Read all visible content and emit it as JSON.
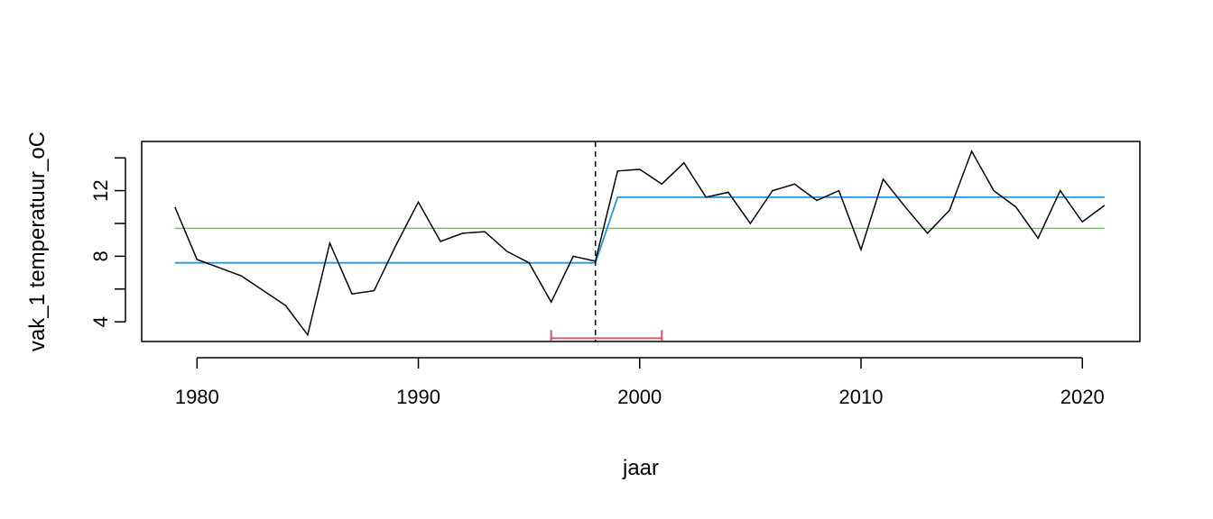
{
  "chart_data": {
    "type": "line",
    "title": "",
    "xlabel": "jaar",
    "ylabel": "vak_1 temperatuur_oC",
    "xlim": [
      1977.5,
      2022.6
    ],
    "ylim": [
      2.8,
      15.0
    ],
    "x_ticks": [
      1980,
      1990,
      2000,
      2010,
      2020
    ],
    "y_ticks": [
      4,
      6,
      8,
      10,
      12,
      14
    ],
    "y_tick_labels": [
      "4",
      "",
      "8",
      "",
      "12",
      ""
    ],
    "grid": false,
    "legend": "none",
    "series": [
      {
        "kind": "observed",
        "color": "#000000",
        "x": [
          1979,
          1980,
          1981,
          1982,
          1983,
          1984,
          1985,
          1986,
          1987,
          1988,
          1989,
          1990,
          1991,
          1992,
          1993,
          1994,
          1995,
          1996,
          1997,
          1998,
          1999,
          2000,
          2001,
          2002,
          2003,
          2004,
          2005,
          2006,
          2007,
          2008,
          2009,
          2010,
          2011,
          2012,
          2013,
          2014,
          2015,
          2016,
          2017,
          2018,
          2019,
          2020,
          2021
        ],
        "y": [
          11.0,
          7.8,
          7.3,
          6.8,
          5.9,
          5.0,
          3.2,
          8.8,
          5.7,
          5.9,
          8.7,
          11.3,
          8.9,
          9.4,
          9.5,
          8.3,
          7.6,
          5.2,
          8.0,
          7.7,
          13.2,
          13.3,
          12.4,
          13.7,
          11.6,
          11.9,
          10.0,
          12.0,
          12.4,
          11.4,
          12.0,
          8.4,
          12.7,
          11.0,
          9.4,
          10.8,
          14.4,
          12.0,
          11.0,
          9.1,
          12.0,
          10.1,
          11.1
        ]
      },
      {
        "kind": "overall-mean",
        "color": "#61d04f",
        "x": [
          1979,
          2021
        ],
        "y": [
          9.7,
          9.7
        ]
      },
      {
        "kind": "segment-means",
        "color": "#2297e6",
        "x": [
          1979,
          1998,
          1999,
          2021
        ],
        "y": [
          7.6,
          7.6,
          11.6,
          11.6
        ]
      }
    ],
    "changepoint": {
      "x": 1998,
      "color": "#000000",
      "style": "dashed"
    },
    "confidence_interval": {
      "x": [
        1996,
        2001
      ],
      "y": 3.0,
      "color": "#df536b"
    }
  }
}
